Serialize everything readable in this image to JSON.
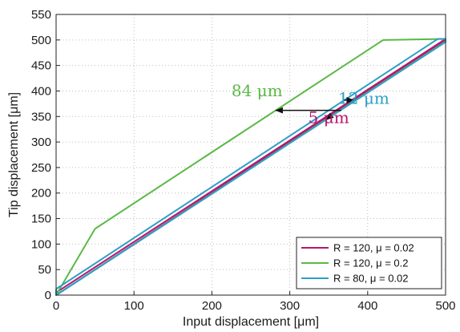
{
  "chart_data": {
    "type": "line",
    "title": "",
    "xlabel": "Input displacement [μm]",
    "ylabel": "Tip displacement [μm]",
    "xlim": [
      0,
      500
    ],
    "ylim": [
      0,
      550
    ],
    "xticks": [
      0,
      100,
      200,
      300,
      400,
      500
    ],
    "yticks": [
      0,
      50,
      100,
      150,
      200,
      250,
      300,
      350,
      400,
      450,
      500,
      550
    ],
    "grid": true,
    "grid_style": "dotted",
    "legend_position": "bottom-right",
    "series": [
      {
        "name": "R = 120, μ = 0.02",
        "color": "#b5176f",
        "x": [
          0,
          500,
          497,
          0,
          0
        ],
        "y": [
          5,
          502,
          497,
          0,
          5
        ]
      },
      {
        "name": "R = 120, μ = 0.2",
        "color": "#5ab946",
        "x": [
          50,
          420,
          500,
          500,
          0,
          50
        ],
        "y": [
          130,
          500,
          502,
          497,
          0,
          130
        ]
      },
      {
        "name": "R = 80, μ = 0.02",
        "color": "#2e9fc7",
        "x": [
          0,
          490,
          500,
          500,
          0,
          0
        ],
        "y": [
          12,
          502,
          502,
          496,
          0,
          12
        ]
      }
    ],
    "annotations": [
      {
        "text": "84 μm",
        "color": "#5ab946",
        "x": 258,
        "y": 390
      },
      {
        "text": "12 μm",
        "color": "#2e9fc7",
        "x": 395,
        "y": 375
      },
      {
        "text": "5 μm",
        "color": "#b5176f",
        "x": 350,
        "y": 337
      }
    ],
    "arrows": [
      {
        "from": [
          366,
          362
        ],
        "to": [
          282,
          362
        ]
      },
      {
        "from": [
          368,
          382
        ],
        "to": [
          382,
          382
        ]
      },
      {
        "from": [
          352,
          350
        ],
        "to": [
          347,
          344
        ]
      }
    ]
  }
}
